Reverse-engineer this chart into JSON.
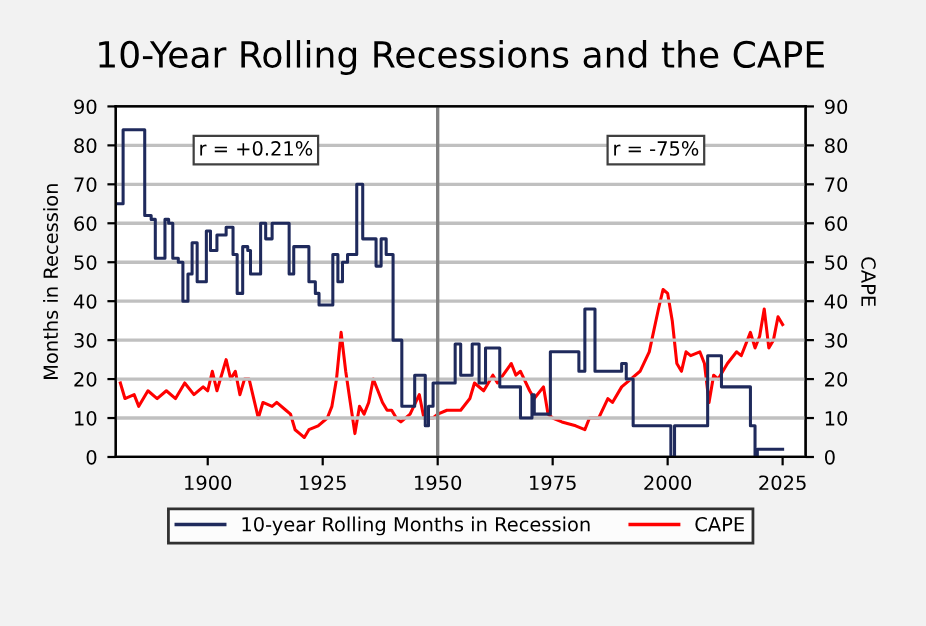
{
  "chart_data": {
    "type": "line",
    "title": "10-Year Rolling Recessions and the CAPE",
    "ylabel": "Months in Recession",
    "y2label": "CAPE",
    "xlim": [
      1880,
      2030
    ],
    "xticks": [
      1900,
      1925,
      1950,
      1975,
      2000,
      2025
    ],
    "ylim": [
      0,
      90
    ],
    "yticks": [
      0,
      10,
      20,
      30,
      40,
      50,
      60,
      70,
      80,
      90
    ],
    "y2lim": [
      0,
      90
    ],
    "y2ticks": [
      0,
      10,
      20,
      30,
      40,
      50,
      60,
      70,
      80,
      90
    ],
    "grid": "y",
    "legend": "bottom",
    "line_style": "solid",
    "marker": "none",
    "annotations": [
      "r = +0.21%",
      "r = -75%"
    ],
    "ref_lines": [
      {
        "axis": "x",
        "value": 1950,
        "label": null,
        "color": "#808080"
      }
    ],
    "series": [
      {
        "name": "10-year Rolling Months in Recession",
        "color": "#1f2a5c",
        "type": "step",
        "x": [
          1880.4,
          1881.6,
          1882.6,
          1884.5,
          1886.3,
          1887.7,
          1888.6,
          1890,
          1890.7,
          1891.5,
          1892.4,
          1893.6,
          1894.6,
          1895.7,
          1896.6,
          1897.7,
          1898.7,
          1899.7,
          1900.6,
          1902,
          1904,
          1905.5,
          1906.4,
          1907.6,
          1908.7,
          1909.3,
          1910.3,
          1911.5,
          1912.6,
          1914,
          1916.6,
          1917.7,
          1918.7,
          1921,
          1922,
          1923.4,
          1924.2,
          1925.7,
          1927.2,
          1928.3,
          1929.3,
          1930.4,
          1932.4,
          1933.7,
          1935.9,
          1936.6,
          1937.7,
          1938.8,
          1940.3,
          1942.2,
          1943.9,
          1945,
          1946.4,
          1947.3,
          1948,
          1949,
          1953.8,
          1955,
          1957.5,
          1959,
          1960.4,
          1963,
          1963.5,
          1967,
          1968,
          1970,
          1970.5,
          1971,
          1974,
          1974.5,
          1980,
          1980.7,
          1982,
          1983,
          1984.2,
          1989,
          1990,
          1991,
          1992.5,
          2000,
          2000.7,
          2001.5,
          2008,
          2008.7,
          2011,
          2011.7,
          2017,
          2018,
          2019,
          2019.5,
          2025
        ],
        "values": [
          65,
          84,
          84,
          84,
          62,
          61,
          51,
          51,
          61,
          60,
          51,
          50,
          40,
          47,
          55,
          45,
          45,
          58,
          53,
          57,
          59,
          52,
          42,
          54,
          53,
          47,
          47,
          60,
          56,
          60,
          60,
          47,
          54,
          54,
          45,
          42,
          39,
          39,
          52,
          45,
          50,
          52,
          70,
          56,
          56,
          49,
          56,
          52,
          30,
          13,
          13,
          21,
          21,
          8,
          13,
          19,
          29,
          21,
          29,
          19,
          28,
          28,
          18,
          18,
          10,
          10,
          16,
          11,
          11,
          27,
          27,
          22,
          38,
          38,
          22,
          22,
          24,
          20,
          8,
          8,
          0,
          8,
          8,
          26,
          26,
          18,
          18,
          8,
          0,
          2,
          2
        ]
      },
      {
        "name": "CAPE",
        "color": "#ff0000",
        "axis": "y2",
        "x": [
          1881,
          1882,
          1884,
          1885,
          1887,
          1889,
          1891,
          1893,
          1895,
          1897,
          1899,
          1900,
          1901,
          1902,
          1904,
          1905,
          1906,
          1907,
          1908,
          1909,
          1910,
          1911,
          1912,
          1914,
          1915,
          1917,
          1918,
          1919,
          1920,
          1921,
          1922,
          1924,
          1926,
          1927,
          1928,
          1929,
          1930,
          1931,
          1932,
          1933,
          1934,
          1935,
          1936,
          1937,
          1938,
          1939,
          1940,
          1941,
          1942,
          1944,
          1946,
          1947,
          1949,
          1950,
          1952,
          1955,
          1957,
          1958,
          1960,
          1962,
          1963,
          1966,
          1967,
          1968,
          1970,
          1971,
          1973,
          1974,
          1975,
          1977,
          1980,
          1982,
          1983,
          1985,
          1987,
          1988,
          1990,
          1992,
          1994,
          1996,
          1998,
          1999,
          2000,
          2001,
          2002,
          2003,
          2004,
          2005,
          2007,
          2008,
          2009,
          2010,
          2011,
          2013,
          2015,
          2016,
          2018,
          2019,
          2020,
          2021,
          2022,
          2023,
          2024,
          2025
        ],
        "values": [
          19,
          15,
          16,
          13,
          17,
          15,
          17,
          15,
          19,
          16,
          18,
          17,
          22,
          17,
          25,
          20,
          22,
          16,
          20,
          20,
          15,
          10,
          14,
          13,
          14,
          12,
          11,
          7,
          6,
          5,
          7,
          8,
          10,
          13,
          20,
          32,
          22,
          14,
          6,
          13,
          11,
          14,
          20,
          17,
          14,
          12,
          12,
          10,
          9,
          11,
          16,
          10,
          10,
          11,
          12,
          12,
          15,
          19,
          17,
          21,
          19,
          24,
          21,
          22,
          17,
          15,
          18,
          11,
          10,
          9,
          8,
          7,
          10,
          10,
          15,
          14,
          18,
          20,
          22,
          27,
          38,
          43,
          42,
          35,
          24,
          22,
          27,
          26,
          27,
          24,
          14,
          21,
          20,
          24,
          27,
          26,
          32,
          28,
          31,
          38,
          28,
          30,
          36,
          34
        ]
      }
    ]
  }
}
